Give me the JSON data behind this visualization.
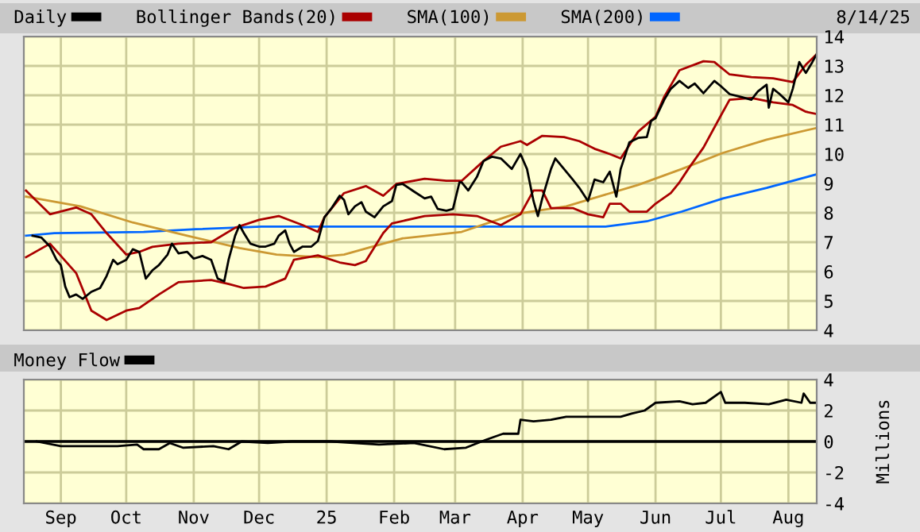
{
  "chart_data": [
    {
      "type": "line",
      "legend": "top",
      "grid": true,
      "tick_labels": "y",
      "annotations": [
        "8/14/25"
      ],
      "xlim": [
        "2024-08-15",
        "2025-08-14"
      ],
      "ylim": [
        4,
        14
      ],
      "yticks": [
        4,
        5,
        6,
        7,
        8,
        9,
        10,
        11,
        12,
        13,
        14
      ],
      "series": [
        {
          "name": "SMA(200)",
          "color": "#0066ff",
          "x": [
            "2024-08-16",
            "2024-08-29",
            "2024-10-09",
            "2024-11-02",
            "2024-12-02",
            "2025-01-22",
            "2025-05-09",
            "2025-05-28",
            "2025-06-13",
            "2025-07-02",
            "2025-07-22",
            "2025-08-14"
          ],
          "values": [
            7.22,
            7.31,
            7.35,
            7.44,
            7.53,
            7.53,
            7.53,
            7.71,
            8.04,
            8.49,
            8.85,
            9.31
          ]
        },
        {
          "name": "SMA(100)",
          "color": "#cc9933",
          "x": [
            "2024-08-16",
            "2024-09-10",
            "2024-10-04",
            "2024-10-29",
            "2024-11-22",
            "2024-12-09",
            "2024-12-28",
            "2025-01-09",
            "2025-01-22",
            "2025-02-05",
            "2025-03-04",
            "2025-03-28",
            "2025-04-21",
            "2025-05-24",
            "2025-06-13",
            "2025-07-02",
            "2025-07-22",
            "2025-08-14"
          ],
          "values": [
            8.55,
            8.22,
            7.67,
            7.22,
            6.8,
            6.58,
            6.49,
            6.58,
            6.85,
            7.13,
            7.35,
            7.95,
            8.22,
            8.95,
            9.49,
            10.04,
            10.49,
            10.89
          ]
        },
        {
          "name": "Bollinger Bands(20)",
          "color": "#aa0000",
          "x": [
            "2024-08-16",
            "2024-08-27",
            "2024-09-08",
            "2024-09-15",
            "2024-09-22",
            "2024-10-01",
            "2024-10-07",
            "2024-10-13",
            "2024-10-25",
            "2024-11-09",
            "2024-11-20",
            "2024-12-01",
            "2024-12-10",
            "2024-12-21",
            "2024-12-28",
            "2024-12-31",
            "2025-01-09",
            "2025-01-19",
            "2025-01-27",
            "2025-02-02",
            "2025-02-15",
            "2025-02-25",
            "2025-03-04",
            "2025-03-14",
            "2025-03-22",
            "2025-03-31",
            "2025-04-03",
            "2025-04-10",
            "2025-04-20",
            "2025-04-27",
            "2025-05-04",
            "2025-05-11",
            "2025-05-16",
            "2025-05-24",
            "2025-06-01",
            "2025-06-05",
            "2025-06-12",
            "2025-06-23",
            "2025-06-28",
            "2025-07-05",
            "2025-07-15",
            "2025-07-25",
            "2025-08-03",
            "2025-08-09",
            "2025-08-14"
          ],
          "values": [
            8.76,
            7.95,
            8.18,
            7.95,
            7.31,
            6.58,
            6.67,
            6.84,
            6.95,
            7.0,
            7.49,
            7.76,
            7.89,
            7.58,
            7.35,
            7.85,
            8.67,
            8.91,
            8.58,
            8.98,
            9.16,
            9.09,
            9.09,
            9.76,
            10.25,
            10.44,
            10.31,
            10.62,
            10.58,
            10.44,
            10.18,
            10.0,
            9.85,
            10.76,
            11.27,
            11.95,
            12.85,
            13.16,
            13.13,
            12.71,
            12.62,
            12.58,
            12.45,
            13.04,
            13.4
          ]
        },
        {
          "color": "#aa0000",
          "x": [
            "2024-08-16",
            "2024-08-27",
            "2024-09-08",
            "2024-09-15",
            "2024-09-22",
            "2024-10-01",
            "2024-10-07",
            "2024-10-16",
            "2024-10-25",
            "2024-11-09",
            "2024-11-17",
            "2024-11-24",
            "2024-12-04",
            "2024-12-13",
            "2024-12-17",
            "2024-12-28",
            "2025-01-07",
            "2025-01-14",
            "2025-01-19",
            "2025-01-27",
            "2025-01-31",
            "2025-02-15",
            "2025-02-28",
            "2025-03-11",
            "2025-03-22",
            "2025-03-31",
            "2025-04-06",
            "2025-04-10",
            "2025-04-14",
            "2025-04-24",
            "2025-05-01",
            "2025-05-08",
            "2025-05-11",
            "2025-05-16",
            "2025-05-20",
            "2025-05-28",
            "2025-06-01",
            "2025-06-08",
            "2025-06-12",
            "2025-06-16",
            "2025-06-23",
            "2025-07-01",
            "2025-07-05",
            "2025-07-15",
            "2025-07-25",
            "2025-08-03",
            "2025-08-09",
            "2025-08-14"
          ],
          "values": [
            6.49,
            6.95,
            5.95,
            4.67,
            4.35,
            4.67,
            4.76,
            5.22,
            5.64,
            5.71,
            5.58,
            5.44,
            5.49,
            5.76,
            6.4,
            6.55,
            6.31,
            6.22,
            6.36,
            7.31,
            7.64,
            7.89,
            7.95,
            7.89,
            7.58,
            7.95,
            8.76,
            8.76,
            8.16,
            8.16,
            7.95,
            7.85,
            8.31,
            8.31,
            8.04,
            8.04,
            8.31,
            8.67,
            9.04,
            9.49,
            10.22,
            11.31,
            11.85,
            11.91,
            11.76,
            11.67,
            11.44,
            11.36
          ]
        },
        {
          "name": "Daily",
          "color": "#000000",
          "x": [
            "2024-08-19",
            "2024-08-23",
            "2024-08-27",
            "2024-08-30",
            "2024-09-01",
            "2024-09-03",
            "2024-09-05",
            "2024-09-08",
            "2024-09-11",
            "2024-09-15",
            "2024-09-19",
            "2024-09-22",
            "2024-09-25",
            "2024-09-27",
            "2024-10-01",
            "2024-10-04",
            "2024-10-07",
            "2024-10-10",
            "2024-10-13",
            "2024-10-16",
            "2024-10-20",
            "2024-10-22",
            "2024-10-25",
            "2024-10-29",
            "2024-11-01",
            "2024-11-05",
            "2024-11-09",
            "2024-11-12",
            "2024-11-15",
            "2024-11-17",
            "2024-11-20",
            "2024-11-22",
            "2024-11-24",
            "2024-11-27",
            "2024-12-01",
            "2024-12-04",
            "2024-12-08",
            "2024-12-10",
            "2024-12-13",
            "2024-12-15",
            "2024-12-17",
            "2024-12-21",
            "2024-12-25",
            "2024-12-28",
            "2024-12-31",
            "2025-01-03",
            "2025-01-07",
            "2025-01-09",
            "2025-01-11",
            "2025-01-14",
            "2025-01-17",
            "2025-01-19",
            "2025-01-23",
            "2025-01-27",
            "2025-01-31",
            "2025-02-02",
            "2025-02-05",
            "2025-02-10",
            "2025-02-15",
            "2025-02-18",
            "2025-02-21",
            "2025-02-25",
            "2025-02-28",
            "2025-03-03",
            "2025-03-04",
            "2025-03-07",
            "2025-03-11",
            "2025-03-14",
            "2025-03-18",
            "2025-03-22",
            "2025-03-27",
            "2025-03-31",
            "2025-04-03",
            "2025-04-06",
            "2025-04-08",
            "2025-04-10",
            "2025-04-14",
            "2025-04-16",
            "2025-04-20",
            "2025-04-24",
            "2025-04-27",
            "2025-05-01",
            "2025-05-04",
            "2025-05-08",
            "2025-05-11",
            "2025-05-14",
            "2025-05-16",
            "2025-05-20",
            "2025-05-24",
            "2025-05-28",
            "2025-05-30",
            "2025-06-01",
            "2025-06-05",
            "2025-06-08",
            "2025-06-12",
            "2025-06-16",
            "2025-06-19",
            "2025-06-23",
            "2025-06-28",
            "2025-07-01",
            "2025-07-05",
            "2025-07-10",
            "2025-07-15",
            "2025-07-18",
            "2025-07-22",
            "2025-07-23",
            "2025-07-25",
            "2025-07-28",
            "2025-08-01",
            "2025-08-03",
            "2025-08-06",
            "2025-08-09",
            "2025-08-12",
            "2025-08-14"
          ],
          "values": [
            7.22,
            7.16,
            6.85,
            6.4,
            6.22,
            5.49,
            5.13,
            5.22,
            5.07,
            5.31,
            5.44,
            5.85,
            6.4,
            6.25,
            6.4,
            6.76,
            6.67,
            5.76,
            6.04,
            6.22,
            6.58,
            6.95,
            6.62,
            6.67,
            6.44,
            6.53,
            6.4,
            5.76,
            5.67,
            6.4,
            7.22,
            7.58,
            7.31,
            6.95,
            6.85,
            6.85,
            6.95,
            7.22,
            7.4,
            6.95,
            6.67,
            6.85,
            6.85,
            7.04,
            7.85,
            8.13,
            8.58,
            8.44,
            7.95,
            8.22,
            8.36,
            8.04,
            7.85,
            8.22,
            8.4,
            8.95,
            8.98,
            8.73,
            8.49,
            8.55,
            8.13,
            8.07,
            8.13,
            9.04,
            9.04,
            8.76,
            9.22,
            9.76,
            9.91,
            9.85,
            9.49,
            10.0,
            9.49,
            8.4,
            7.89,
            8.49,
            9.49,
            9.85,
            9.49,
            9.13,
            8.85,
            8.4,
            9.13,
            9.04,
            9.4,
            8.55,
            9.49,
            10.4,
            10.55,
            10.58,
            11.13,
            11.22,
            11.85,
            12.22,
            12.49,
            12.25,
            12.4,
            12.07,
            12.49,
            12.31,
            12.04,
            11.95,
            11.85,
            12.13,
            12.36,
            11.58,
            12.22,
            12.04,
            11.76,
            12.22,
            13.13,
            12.76,
            13.13,
            13.4
          ]
        }
      ]
    },
    {
      "type": "line",
      "legend": "top",
      "grid": true,
      "ylabel": "Millions",
      "xlim": [
        "2024-08-15",
        "2025-08-14"
      ],
      "ylim": [
        -4,
        4
      ],
      "yticks": [
        -4,
        -2,
        0,
        2,
        4
      ],
      "xticks": [
        {
          "value": "2024-09-01",
          "label": "Sep"
        },
        {
          "value": "2024-10-01",
          "label": "Oct"
        },
        {
          "value": "2024-11-01",
          "label": "Nov"
        },
        {
          "value": "2024-12-01",
          "label": "Dec"
        },
        {
          "value": "2025-01-01",
          "label": "25"
        },
        {
          "value": "2025-02-01",
          "label": "Feb"
        },
        {
          "value": "2025-03-01",
          "label": "Mar"
        },
        {
          "value": "2025-04-01",
          "label": "Apr"
        },
        {
          "value": "2025-05-01",
          "label": "May"
        },
        {
          "value": "2025-06-01",
          "label": "Jun"
        },
        {
          "value": "2025-07-01",
          "label": "Jul"
        },
        {
          "value": "2025-08-01",
          "label": "Aug"
        }
      ],
      "ref_lines": [
        {
          "axis": "y",
          "value": 0,
          "color": "#000000"
        }
      ],
      "series": [
        {
          "name": "Money Flow",
          "color": "#000000",
          "x": [
            "2024-08-21",
            "2024-09-01",
            "2024-09-14",
            "2024-09-27",
            "2024-10-06",
            "2024-10-09",
            "2024-10-16",
            "2024-10-21",
            "2024-10-27",
            "2024-11-10",
            "2024-11-17",
            "2024-11-23",
            "2024-12-05",
            "2024-12-16",
            "2025-01-03",
            "2025-01-25",
            "2025-02-10",
            "2025-02-24",
            "2025-03-06",
            "2025-03-15",
            "2025-03-23",
            "2025-03-30",
            "2025-03-31",
            "2025-04-06",
            "2025-04-14",
            "2025-04-21",
            "2025-05-02",
            "2025-05-16",
            "2025-05-21",
            "2025-05-27",
            "2025-06-01",
            "2025-06-12",
            "2025-06-18",
            "2025-06-24",
            "2025-07-01",
            "2025-07-03",
            "2025-07-12",
            "2025-07-23",
            "2025-07-31",
            "2025-08-07",
            "2025-08-08",
            "2025-08-11",
            "2025-08-14"
          ],
          "values": [
            0,
            -0.3,
            -0.3,
            -0.3,
            -0.2,
            -0.5,
            -0.5,
            -0.1,
            -0.4,
            -0.3,
            -0.5,
            0,
            -0.1,
            0,
            0,
            -0.2,
            -0.1,
            -0.5,
            -0.4,
            0.1,
            0.5,
            0.5,
            1.4,
            1.3,
            1.4,
            1.6,
            1.6,
            1.6,
            1.8,
            2.0,
            2.5,
            2.6,
            2.4,
            2.5,
            3.2,
            2.5,
            2.5,
            2.4,
            2.7,
            2.5,
            3.1,
            2.5,
            2.5
          ]
        }
      ]
    }
  ]
}
